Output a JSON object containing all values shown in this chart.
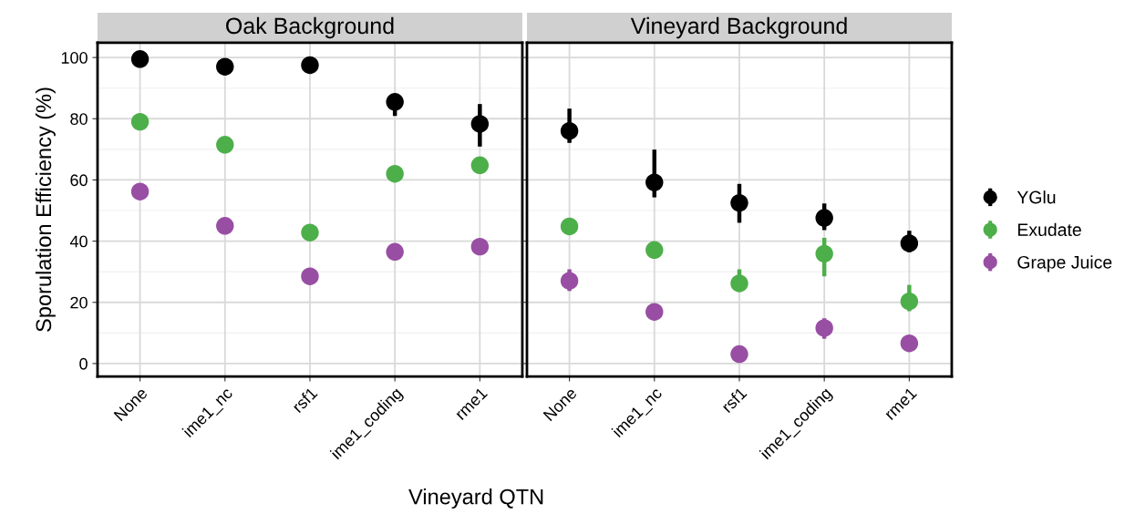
{
  "chart_data": [
    {
      "type": "scatter",
      "title": "Oak Background",
      "xlabel": "Vineyard QTN",
      "ylabel": "Sporulation Efficiency (%)",
      "categories": [
        "None",
        "ime1_nc",
        "rsf1",
        "ime1_coding",
        "rme1"
      ],
      "ylim": [
        -4.2,
        104.8
      ],
      "yticks": [
        0,
        20,
        40,
        60,
        80,
        100
      ],
      "grid": true,
      "marker": "circle",
      "legend": "right",
      "series": [
        {
          "name": "YGlu",
          "color": "#000000",
          "values": [
            99.5,
            97,
            97.5,
            85.5,
            78.3
          ],
          "errors": [
            null,
            null,
            null,
            [
              80.9,
              85.5
            ],
            [
              70.9,
              84.8
            ]
          ]
        },
        {
          "name": "Exudate",
          "color": "#4daf4a",
          "values": [
            79,
            71.5,
            42.8,
            62,
            64.8
          ],
          "errors": [
            null,
            null,
            null,
            null,
            null
          ]
        },
        {
          "name": "Grape Juice",
          "color": "#984ea3",
          "values": [
            56.2,
            45,
            28.5,
            36.5,
            38.2
          ],
          "errors": [
            [
              54,
              56.2
            ],
            null,
            null,
            null,
            null
          ]
        }
      ]
    },
    {
      "type": "scatter",
      "title": "Vineyard Background",
      "categories": [
        "None",
        "ime1_nc",
        "rsf1",
        "ime1_coding",
        "rme1"
      ],
      "ylim": [
        -4.2,
        104.8
      ],
      "yticks": [
        0,
        20,
        40,
        60,
        80,
        100
      ],
      "grid": true,
      "marker": "circle",
      "tick_labels": "x",
      "series": [
        {
          "color": "#000000",
          "values": [
            76,
            59.2,
            52.5,
            47.6,
            39.3
          ],
          "errors": [
            [
              72.1,
              83.3
            ],
            [
              54.3,
              69.9
            ],
            [
              46,
              58.7
            ],
            [
              43.6,
              52.3
            ],
            [
              36.4,
              43.4
            ]
          ]
        },
        {
          "color": "#4daf4a",
          "values": [
            44.8,
            37.1,
            26.2,
            35.9,
            20.3
          ],
          "errors": [
            null,
            null,
            [
              23.5,
              30.8
            ],
            [
              28.5,
              41.1
            ],
            [
              17.1,
              25.7
            ]
          ]
        },
        {
          "color": "#984ea3",
          "values": [
            27,
            16.9,
            3.1,
            11.6,
            6.6
          ],
          "errors": [
            [
              23.7,
              30.8
            ],
            null,
            null,
            [
              8.1,
              14.8
            ],
            null
          ]
        }
      ]
    }
  ]
}
